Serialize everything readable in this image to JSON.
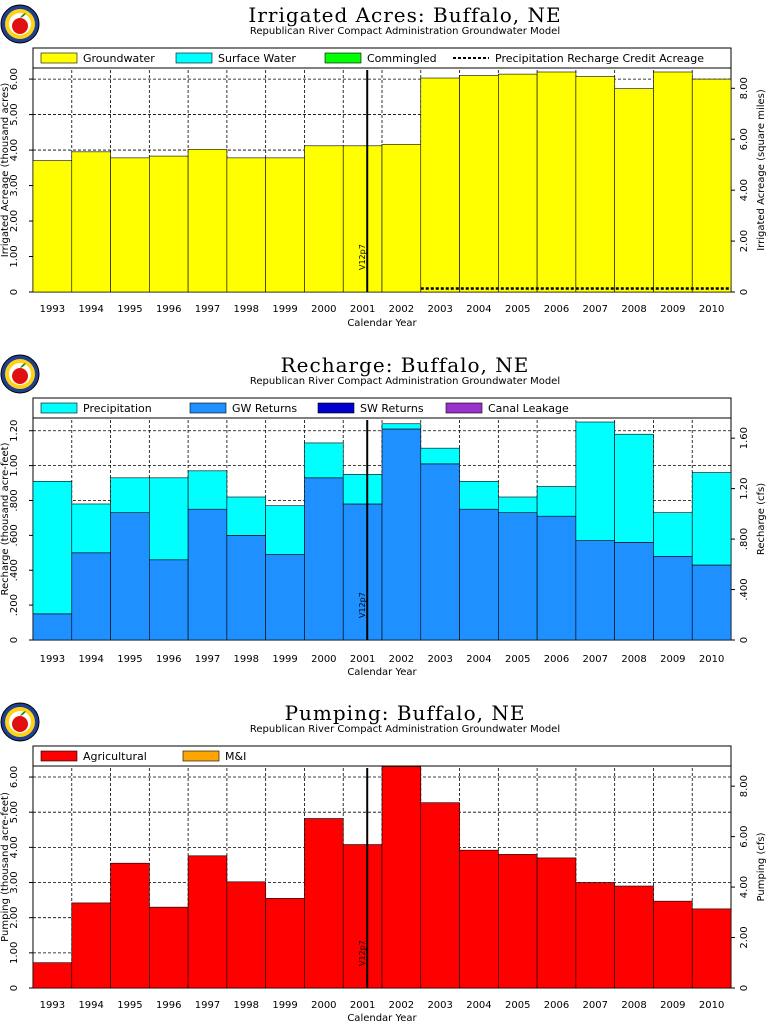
{
  "logo_icon": "apple-logo-icon",
  "colors": {
    "groundwater": "#ffff00",
    "surface_water": "#00ffff",
    "commingled": "#00ff00",
    "precipitation": "#00ffff",
    "gw_returns": "#1e90ff",
    "sw_returns": "#0000cd",
    "canal_leakage": "#9932cc",
    "agricultural": "#ff0000",
    "mi": "#ffa500",
    "marker": "#000000"
  },
  "chart_data": [
    {
      "type": "bar",
      "title": "Irrigated Acres: Buffalo, NE",
      "subtitle": "Republican River Compact Administration Groundwater Model",
      "xlabel": "Calendar Year",
      "ylabel": "Irrigated Acreage (thousand acres)",
      "ylabel_right": "Irrigated Acreage (square miles)",
      "categories": [
        "1993",
        "1994",
        "1995",
        "1996",
        "1997",
        "1998",
        "1999",
        "2000",
        "2001",
        "2002",
        "2003",
        "2004",
        "2005",
        "2006",
        "2007",
        "2008",
        "2009",
        "2010"
      ],
      "ylim": [
        0,
        6.2
      ],
      "yticks": [
        0,
        1.0,
        2.0,
        3.0,
        4.0,
        5.0,
        6.0
      ],
      "ytick_labels": [
        "0",
        "1.00",
        "2.00",
        "3.00",
        "4.00",
        "5.00",
        "6.00"
      ],
      "y2_factor": 0.0015625,
      "y2ticks": [
        0,
        2.0,
        4.0,
        6.0,
        8.0
      ],
      "y2tick_labels": [
        "0",
        "2.00",
        "4.00",
        "6.00",
        "8.00"
      ],
      "series": [
        {
          "name": "Groundwater",
          "color_key": "groundwater",
          "values": [
            3.7,
            3.95,
            3.78,
            3.83,
            4.02,
            3.78,
            3.78,
            4.12,
            4.12,
            4.16,
            6.03,
            6.1,
            6.14,
            6.2,
            6.07,
            5.73,
            6.2,
            6.0
          ]
        },
        {
          "name": "Surface Water",
          "color_key": "surface_water",
          "values": [
            0,
            0,
            0,
            0,
            0,
            0,
            0,
            0,
            0,
            0,
            0,
            0,
            0,
            0,
            0,
            0,
            0,
            0
          ]
        },
        {
          "name": "Commingled",
          "color_key": "commingled",
          "values": [
            0,
            0,
            0,
            0,
            0,
            0,
            0,
            0,
            0,
            0,
            0,
            0,
            0,
            0,
            0,
            0,
            0,
            0
          ]
        }
      ],
      "dashed_series": {
        "name": "Precipitation Recharge Credit Acreage",
        "start_index": 10,
        "value": 0.1
      },
      "marker": {
        "label": "V12p7",
        "after_index": 7
      }
    },
    {
      "type": "bar",
      "title": "Recharge: Buffalo, NE",
      "subtitle": "Republican River Compact Administration Groundwater Model",
      "xlabel": "Calendar Year",
      "ylabel": "Recharge (thousand acre-feet)",
      "ylabel_right": "Recharge (cfs)",
      "categories": [
        "1993",
        "1994",
        "1995",
        "1996",
        "1997",
        "1998",
        "1999",
        "2000",
        "2001",
        "2002",
        "2003",
        "2004",
        "2005",
        "2006",
        "2007",
        "2008",
        "2009",
        "2010"
      ],
      "ylim": [
        0,
        1.25
      ],
      "yticks": [
        0,
        0.2,
        0.4,
        0.6,
        0.8,
        1.0,
        1.2
      ],
      "ytick_labels": [
        "0",
        ".200",
        ".400",
        ".600",
        ".800",
        "1.00",
        "1.20"
      ],
      "y2_factor": 1.38,
      "y2ticks": [
        0,
        0.4,
        0.8,
        1.2,
        1.6
      ],
      "y2tick_labels": [
        "0",
        ".400",
        ".800",
        "1.20",
        "1.60"
      ],
      "series": [
        {
          "name": "Precipitation",
          "color_key": "precipitation",
          "values": [
            0.76,
            0.28,
            0.2,
            0.47,
            0.22,
            0.22,
            0.28,
            0.2,
            0.17,
            0.03,
            0.09,
            0.16,
            0.09,
            0.17,
            0.68,
            0.62,
            0.25,
            0.53
          ]
        },
        {
          "name": "GW Returns",
          "color_key": "gw_returns",
          "values": [
            0.15,
            0.5,
            0.73,
            0.46,
            0.75,
            0.6,
            0.49,
            0.93,
            0.78,
            1.21,
            1.01,
            0.75,
            0.73,
            0.71,
            0.57,
            0.56,
            0.48,
            0.43
          ]
        },
        {
          "name": "SW Returns",
          "color_key": "sw_returns",
          "values": [
            0,
            0,
            0,
            0,
            0,
            0,
            0,
            0,
            0,
            0,
            0,
            0,
            0,
            0,
            0,
            0,
            0,
            0
          ]
        },
        {
          "name": "Canal Leakage",
          "color_key": "canal_leakage",
          "values": [
            0,
            0,
            0,
            0,
            0,
            0,
            0,
            0,
            0,
            0,
            0,
            0,
            0,
            0,
            0,
            0,
            0,
            0
          ]
        }
      ],
      "marker": {
        "label": "V12p7",
        "after_index": 7
      }
    },
    {
      "type": "bar",
      "title": "Pumping: Buffalo, NE",
      "subtitle": "Republican River Compact Administration Groundwater Model",
      "xlabel": "Calendar Year",
      "ylabel": "Pumping (thousand acre-feet)",
      "ylabel_right": "Pumping (cfs)",
      "categories": [
        "1993",
        "1994",
        "1995",
        "1996",
        "1997",
        "1998",
        "1999",
        "2000",
        "2001",
        "2002",
        "2003",
        "2004",
        "2005",
        "2006",
        "2007",
        "2008",
        "2009",
        "2010"
      ],
      "ylim": [
        0,
        6.2
      ],
      "yticks": [
        0,
        1.0,
        2.0,
        3.0,
        4.0,
        5.0,
        6.0
      ],
      "ytick_labels": [
        "0",
        "1.00",
        "2.00",
        "3.00",
        "4.00",
        "5.00",
        "6.00"
      ],
      "y2_factor": 1.38,
      "y2ticks": [
        0,
        2.0,
        4.0,
        6.0,
        8.0
      ],
      "y2tick_labels": [
        "0",
        "2.00",
        "4.00",
        "6.00",
        "8.00"
      ],
      "series": [
        {
          "name": "Agricultural",
          "color_key": "agricultural",
          "values": [
            0.72,
            2.42,
            3.55,
            2.3,
            3.76,
            3.02,
            2.55,
            4.82,
            4.08,
            6.3,
            5.27,
            3.92,
            3.8,
            3.7,
            3.0,
            2.9,
            2.47,
            2.25
          ]
        },
        {
          "name": "M&I",
          "color_key": "mi",
          "values": [
            0,
            0,
            0,
            0,
            0,
            0,
            0,
            0,
            0,
            0,
            0,
            0,
            0,
            0,
            0,
            0,
            0,
            0
          ]
        }
      ],
      "marker": {
        "label": "V12p7",
        "after_index": 7
      }
    }
  ]
}
